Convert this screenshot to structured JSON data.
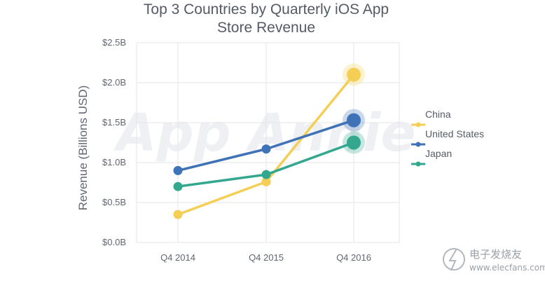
{
  "chart_data": {
    "type": "line",
    "title": "Top 3 Countries by Quarterly iOS App Store Revenue",
    "title_lines": [
      "Top 3 Countries by Quarterly iOS App",
      "Store Revenue"
    ],
    "ylabel": "Revenue (Billions USD)",
    "xlabel": "",
    "categories": [
      "Q4 2014",
      "Q4 2015",
      "Q4 2016"
    ],
    "ylim": [
      0,
      2.5
    ],
    "yticks": [
      0,
      0.5,
      1.0,
      1.5,
      2.0,
      2.5
    ],
    "ytick_labels": [
      "$0.0B",
      "$0.5B",
      "$1.0B",
      "$1.5B",
      "$2.0B",
      "$2.5B"
    ],
    "grid": "vertical and horizontal",
    "legend_position": "right",
    "series": [
      {
        "name": "China",
        "values": [
          0.35,
          0.76,
          2.1
        ],
        "color": "#f5cf55"
      },
      {
        "name": "United States",
        "values": [
          0.9,
          1.17,
          1.53
        ],
        "color": "#3f72b7"
      },
      {
        "name": "Japan",
        "values": [
          0.7,
          0.85,
          1.25
        ],
        "color": "#33a88f"
      }
    ]
  },
  "watermark": {
    "text": "App Annie"
  },
  "source_mark": {
    "brand_name": "电子发烧友",
    "url": "www.elecfans.com"
  }
}
